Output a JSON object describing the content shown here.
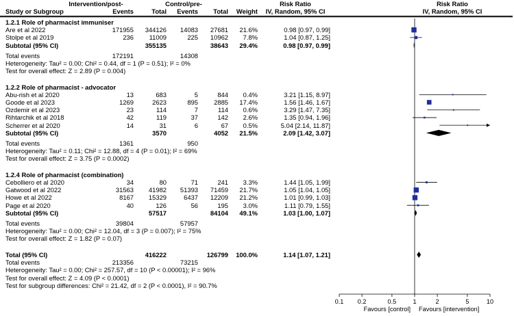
{
  "header": {
    "study": "Study or Subgroup",
    "group1": "Intervention/post-",
    "group2": "Control/pre-",
    "events": "Events",
    "total": "Total",
    "weight": "Weight",
    "rr_label": "Risk Ratio",
    "rr_method": "IV, Random, 95% CI",
    "plot_label": "Risk Ratio",
    "plot_method": "IV, Random, 95% CI"
  },
  "subgroups": [
    {
      "title": "1.2.1 Role of pharmacist immuniser",
      "studies": [
        {
          "name": "Are et al 2022",
          "e1": "171955",
          "n1": "344126",
          "e2": "14083",
          "n2": "27681",
          "weight": "21.6%",
          "ci": "0.98 [0.97, 0.99]"
        },
        {
          "name": "Stolpe et al 2019",
          "e1": "236",
          "n1": "11009",
          "e2": "225",
          "n2": "10962",
          "weight": "7.8%",
          "ci": "1.04 [0.87, 1.25]"
        }
      ],
      "subtotal": {
        "label": "Subtotal (95% CI)",
        "n1": "355135",
        "n2": "38643",
        "weight": "29.4%",
        "ci": "0.98 [0.97, 0.99]"
      },
      "total_events": {
        "label": "Total events",
        "e1": "172191",
        "e2": "14308"
      },
      "heterogeneity": "Heterogeneity: Tau² = 0.00; Chi² = 0.44, df = 1 (P = 0.51); I² = 0%",
      "overall": "Test for overall effect: Z = 2.89 (P = 0.004)"
    },
    {
      "title": "1.2.2 Role of pharmacist - advocator",
      "studies": [
        {
          "name": "Abu-rish et al 2020",
          "e1": "13",
          "n1": "683",
          "e2": "5",
          "n2": "844",
          "weight": "0.4%",
          "ci": "3.21 [1.15, 8.97]"
        },
        {
          "name": "Goode et al 2023",
          "e1": "1269",
          "n1": "2623",
          "e2": "895",
          "n2": "2885",
          "weight": "17.4%",
          "ci": "1.56 [1.46, 1.67]"
        },
        {
          "name": "Ozdemir et al 2023",
          "e1": "23",
          "n1": "114",
          "e2": "7",
          "n2": "114",
          "weight": "0.6%",
          "ci": "3.29 [1.47, 7.35]"
        },
        {
          "name": "Rihtarchik et al 2018",
          "e1": "42",
          "n1": "119",
          "e2": "37",
          "n2": "142",
          "weight": "2.6%",
          "ci": "1.35 [0.94, 1.96]"
        },
        {
          "name": "Scherrer et al 2020",
          "e1": "14",
          "n1": "31",
          "e2": "6",
          "n2": "67",
          "weight": "0.5%",
          "ci": "5.04 [2.14, 11.87]"
        }
      ],
      "subtotal": {
        "label": "Subtotal (95% CI)",
        "n1": "3570",
        "n2": "4052",
        "weight": "21.5%",
        "ci": "2.09 [1.42, 3.07]"
      },
      "total_events": {
        "label": "Total events",
        "e1": "1361",
        "e2": "950"
      },
      "heterogeneity": "Heterogeneity: Tau² = 0.11; Chi² = 12.88, df = 4 (P = 0.01); I² = 69%",
      "overall": "Test for overall effect: Z = 3.75 (P = 0.0002)"
    },
    {
      "title": "1.2.4 Role of pharmacist (combination)",
      "studies": [
        {
          "name": "Cebolliero et al 2020",
          "e1": "34",
          "n1": "80",
          "e2": "71",
          "n2": "241",
          "weight": "3.3%",
          "ci": "1.44 [1.05, 1.99]"
        },
        {
          "name": "Gatwood et al 2022",
          "e1": "31563",
          "n1": "41982",
          "e2": "51393",
          "n2": "71459",
          "weight": "21.7%",
          "ci": "1.05 [1.04, 1.05]"
        },
        {
          "name": "Howe et al 2022",
          "e1": "8167",
          "n1": "15329",
          "e2": "6437",
          "n2": "12209",
          "weight": "21.2%",
          "ci": "1.01 [0.99, 1.03]"
        },
        {
          "name": "Page et al 2020",
          "e1": "40",
          "n1": "126",
          "e2": "56",
          "n2": "195",
          "weight": "3.0%",
          "ci": "1.11 [0.79, 1.55]"
        }
      ],
      "subtotal": {
        "label": "Subtotal (95% CI)",
        "n1": "57517",
        "n2": "84104",
        "weight": "49.1%",
        "ci": "1.03 [1.00, 1.07]"
      },
      "total_events": {
        "label": "Total events",
        "e1": "39804",
        "e2": "57957"
      },
      "heterogeneity": "Heterogeneity: Tau² = 0.00; Chi² = 12.04, df = 3 (P = 0.007); I² = 75%",
      "overall": "Test for overall effect: Z = 1.82 (P = 0.07)"
    }
  ],
  "total": {
    "label": "Total (95% CI)",
    "n1": "416222",
    "n2": "126799",
    "weight": "100.0%",
    "ci": "1.14 [1.07, 1.21]",
    "events_label": "Total events",
    "e1": "213356",
    "e2": "73215",
    "heterogeneity": "Heterogeneity: Tau² = 0.00; Chi² = 257.57, df = 10 (P < 0.00001); I² = 96%",
    "overall": "Test for overall effect: Z = 4.09 (P < 0.0001)",
    "subgroup_diff": "Test for subgroup differences: Chi² = 21.42, df = 2 (P < 0.0001), I² = 90.7%"
  },
  "axis": {
    "tick_labels": [
      "0.1",
      "0.2",
      "0.5",
      "1",
      "2",
      "5",
      "10"
    ],
    "favours_left": "Favours [control]",
    "favours_right": "Favours [intervention]"
  },
  "colors": {
    "study_marker": "#1f2e9e",
    "line": "#000000"
  },
  "chart_data": {
    "type": "forest",
    "scale": "log",
    "xlim": [
      0.1,
      10
    ],
    "ticks": [
      0.1,
      0.2,
      0.5,
      1,
      2,
      5,
      10
    ],
    "reference_line": 1,
    "studies": [
      {
        "name": "Are et al 2022",
        "rr": 0.98,
        "lo": 0.97,
        "hi": 0.99,
        "weight": 21.6
      },
      {
        "name": "Stolpe et al 2019",
        "rr": 1.04,
        "lo": 0.87,
        "hi": 1.25,
        "weight": 7.8
      },
      {
        "name": "Abu-rish et al 2020",
        "rr": 3.21,
        "lo": 1.15,
        "hi": 8.97,
        "weight": 0.4
      },
      {
        "name": "Goode et al 2023",
        "rr": 1.56,
        "lo": 1.46,
        "hi": 1.67,
        "weight": 17.4
      },
      {
        "name": "Ozdemir et al 2023",
        "rr": 3.29,
        "lo": 1.47,
        "hi": 7.35,
        "weight": 0.6
      },
      {
        "name": "Rihtarchik et al 2018",
        "rr": 1.35,
        "lo": 0.94,
        "hi": 1.96,
        "weight": 2.6
      },
      {
        "name": "Scherrer et al 2020",
        "rr": 5.04,
        "lo": 2.14,
        "hi": 11.87,
        "weight": 0.5
      },
      {
        "name": "Cebolliero et al 2020",
        "rr": 1.44,
        "lo": 1.05,
        "hi": 1.99,
        "weight": 3.3
      },
      {
        "name": "Gatwood et al 2022",
        "rr": 1.05,
        "lo": 1.04,
        "hi": 1.05,
        "weight": 21.7
      },
      {
        "name": "Howe et al 2022",
        "rr": 1.01,
        "lo": 0.99,
        "hi": 1.03,
        "weight": 21.2
      },
      {
        "name": "Page et al 2020",
        "rr": 1.11,
        "lo": 0.79,
        "hi": 1.55,
        "weight": 3.0
      }
    ],
    "pooled": [
      {
        "name": "Subtotal 1.2.1",
        "rr": 0.98,
        "lo": 0.97,
        "hi": 0.99
      },
      {
        "name": "Subtotal 1.2.2",
        "rr": 2.09,
        "lo": 1.42,
        "hi": 3.07
      },
      {
        "name": "Subtotal 1.2.4",
        "rr": 1.03,
        "lo": 1.0,
        "hi": 1.07
      },
      {
        "name": "Total",
        "rr": 1.14,
        "lo": 1.07,
        "hi": 1.21
      }
    ]
  }
}
